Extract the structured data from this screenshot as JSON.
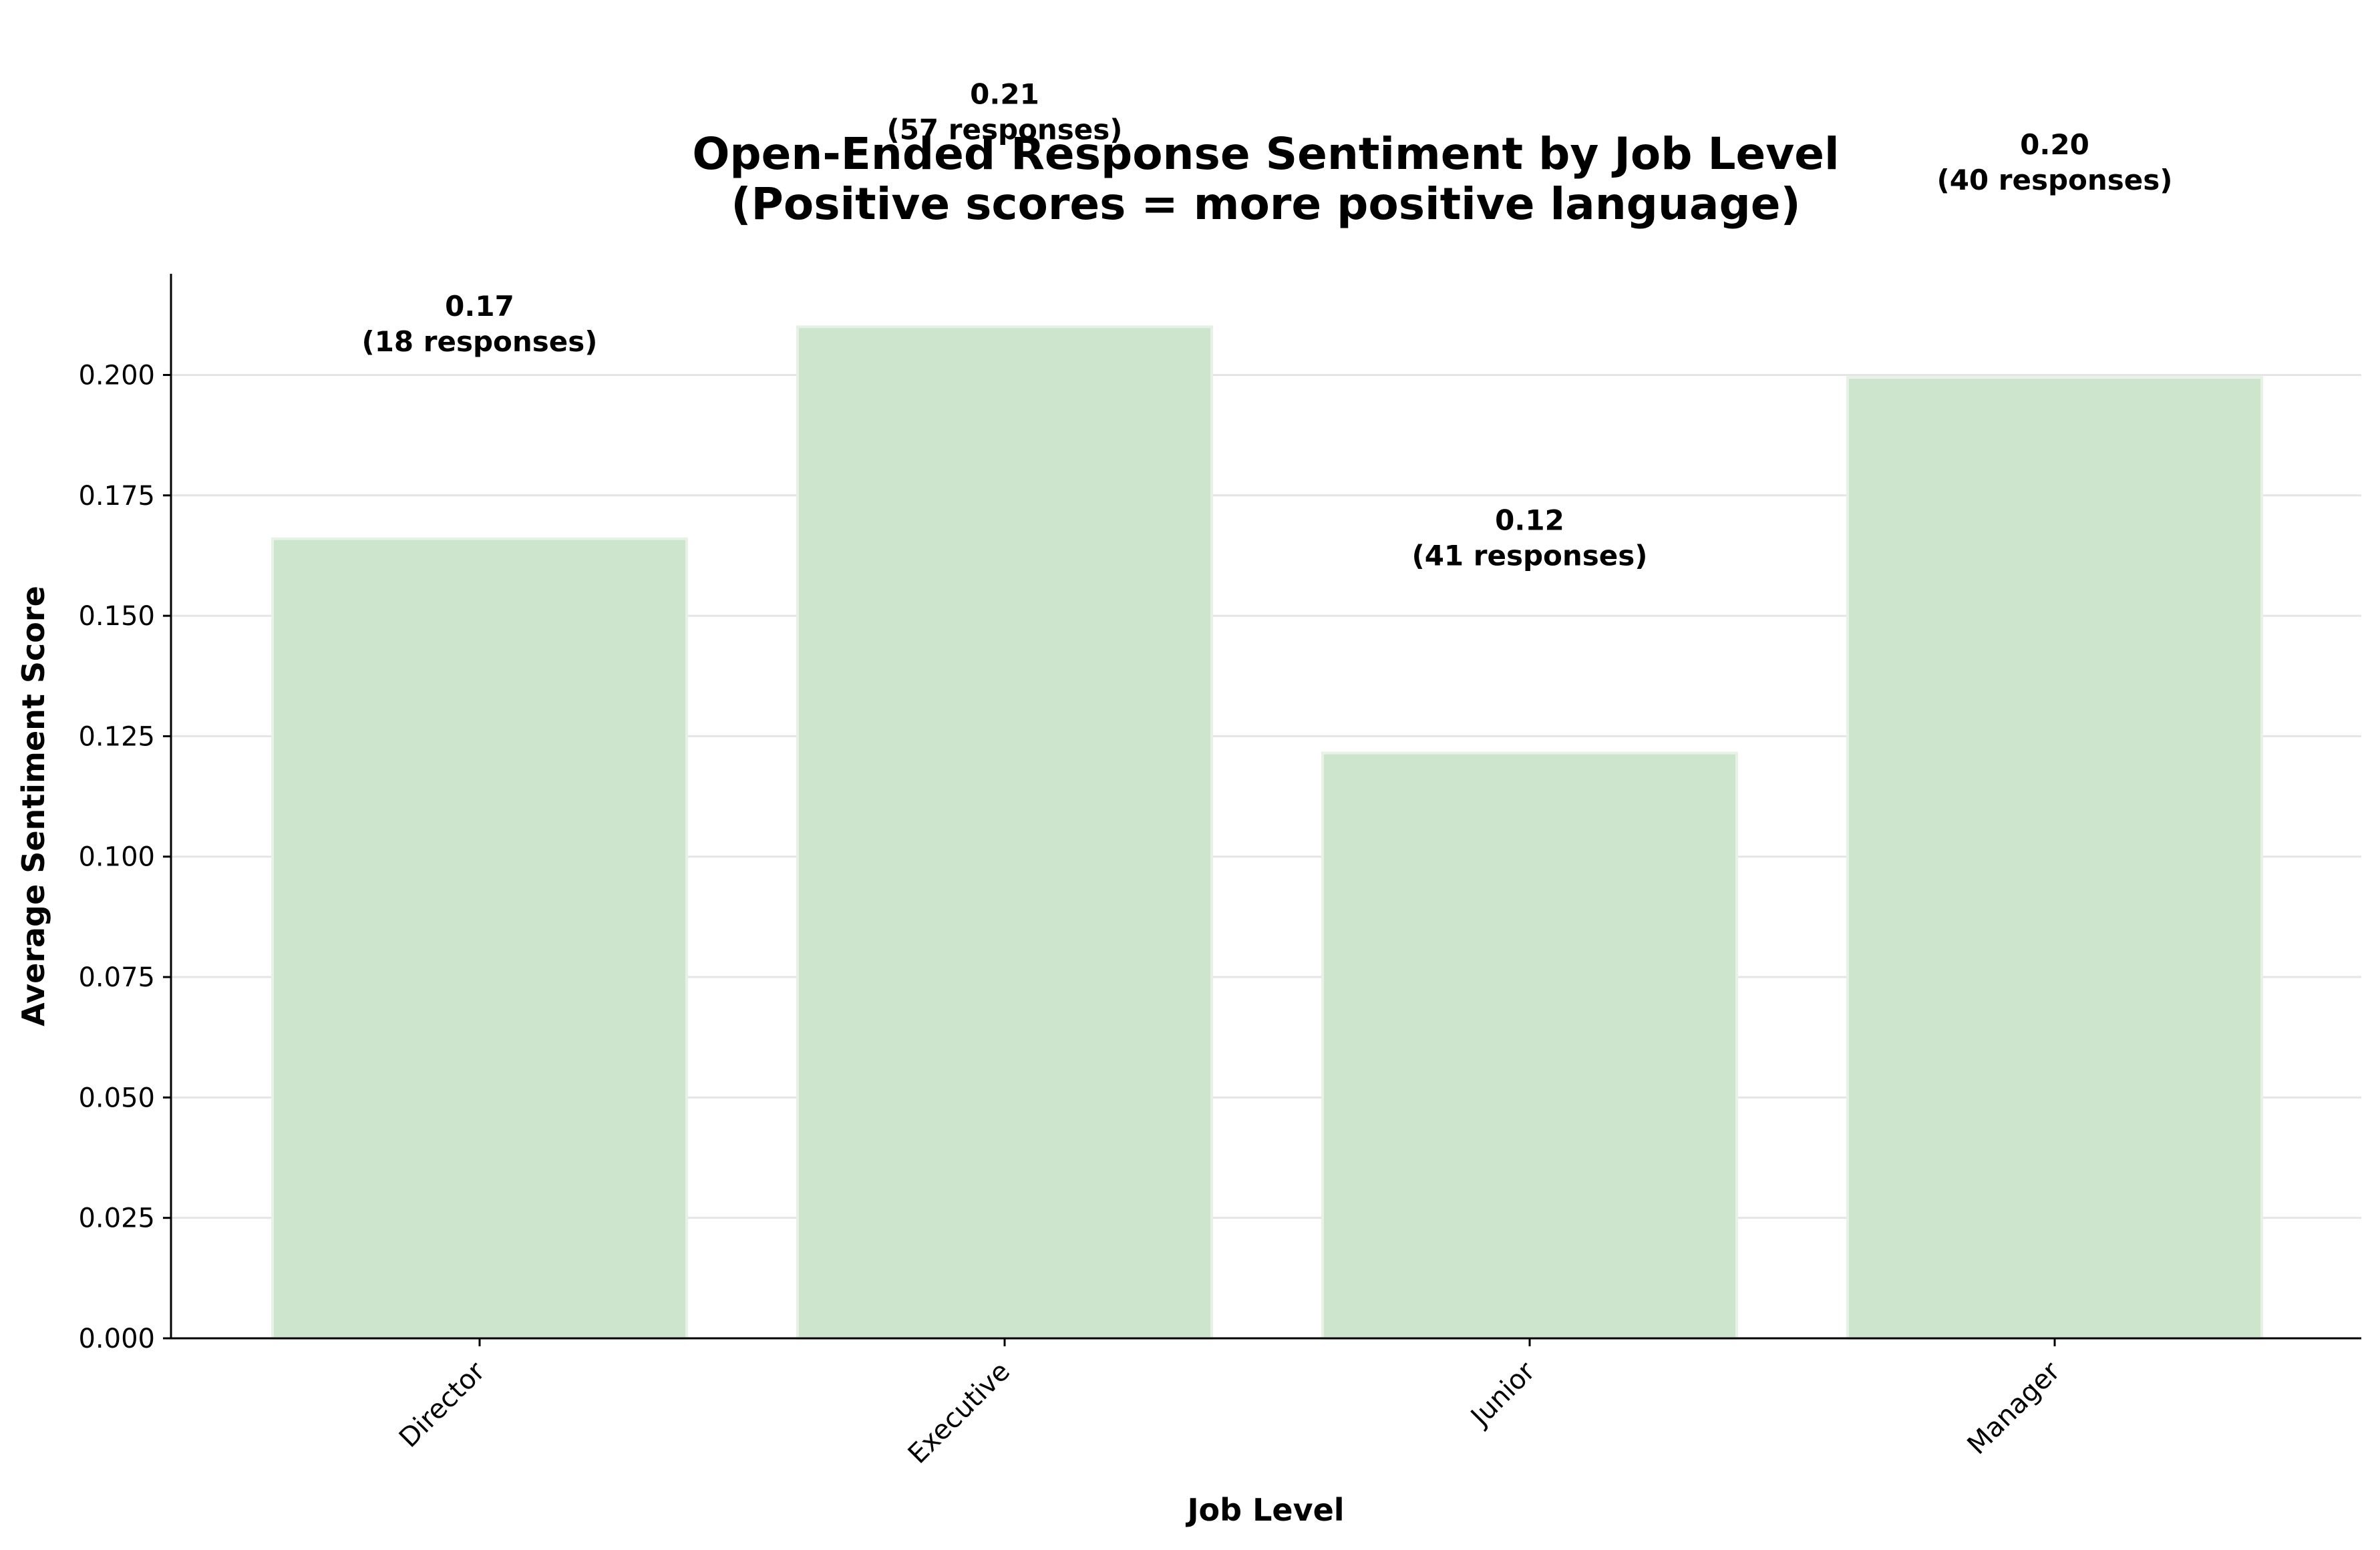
{
  "chart_data": {
    "type": "bar",
    "title_lines": [
      "Open-Ended Response Sentiment by Job Level",
      "(Positive scores = more positive language)"
    ],
    "xlabel": "Job Level",
    "ylabel": "Average Sentiment Score",
    "categories": [
      "Director",
      "Executive",
      "Junior",
      "Manager"
    ],
    "values": [
      0.166,
      0.21,
      0.1215,
      0.1995
    ],
    "value_labels": [
      "0.17",
      "0.21",
      "0.12",
      "0.20"
    ],
    "response_labels": [
      "(18 responses)",
      "(57 responses)",
      "(41 responses)",
      "(40 responses)"
    ],
    "responses": [
      18,
      57,
      41,
      40
    ],
    "ylim": [
      0,
      0.221
    ],
    "yticks": [
      0.0,
      0.025,
      0.05,
      0.075,
      0.1,
      0.125,
      0.15,
      0.175,
      0.2
    ],
    "ytick_labels": [
      "0.000",
      "0.025",
      "0.050",
      "0.075",
      "0.100",
      "0.125",
      "0.150",
      "0.175",
      "0.200"
    ],
    "grid": "horizontal",
    "colors": {
      "bar_fill": "#cce5cc",
      "bar_edge": "#e6f2e6",
      "grid": "#e5e5e5",
      "axis": "#000000"
    }
  }
}
